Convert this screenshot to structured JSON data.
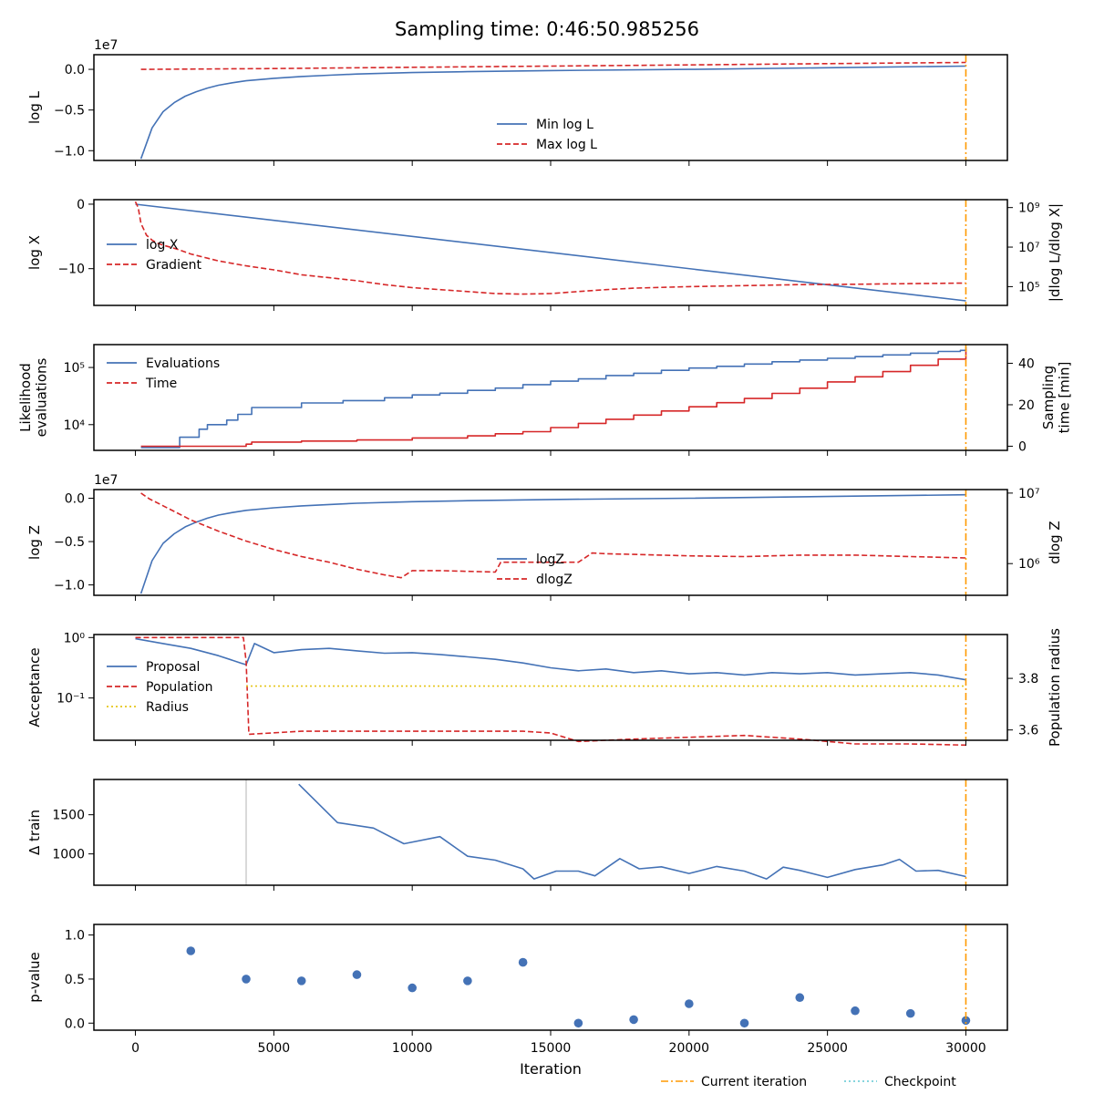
{
  "chart_data": {
    "type": "line",
    "title": "Sampling time: 0:46:50.985256",
    "xlabel": "Iteration",
    "xlim": [
      -1500,
      31500
    ],
    "xticks": [
      0,
      5000,
      10000,
      15000,
      20000,
      25000,
      30000
    ],
    "current_iteration": 30000,
    "legend_bottom": [
      "Current iteration",
      "Checkpoint"
    ],
    "colors": {
      "blue": "#4472b6",
      "red": "#d62728",
      "orange": "#ff9900",
      "yellow": "#e6c619",
      "gray": "#cccccc",
      "checkpoint": "#5fc7d4"
    },
    "panels": [
      {
        "id": "logL",
        "ylabel": "log L",
        "offset_text": "1e7",
        "ylim": [
          -1.12,
          0.18
        ],
        "yticks": [
          0.0,
          -0.5,
          -1.0
        ],
        "ytick_labels": [
          "0.0",
          "−0.5",
          "−1.0"
        ],
        "legend": [
          "Min log L",
          "Max log L"
        ],
        "legend_pos": "lower-center",
        "series": [
          {
            "name": "Min log L",
            "style": "solid",
            "color": "blue",
            "x": [
              200,
              600,
              1000,
              1400,
              1800,
              2200,
              2600,
              3000,
              3500,
              4000,
              5000,
              6000,
              7000,
              8000,
              10000,
              12000,
              15000,
              20000,
              25000,
              30000
            ],
            "y": [
              -1.1,
              -0.72,
              -0.52,
              -0.41,
              -0.33,
              -0.275,
              -0.23,
              -0.195,
              -0.165,
              -0.14,
              -0.11,
              -0.088,
              -0.072,
              -0.058,
              -0.04,
              -0.028,
              -0.015,
              0.0,
              0.02,
              0.04
            ]
          },
          {
            "name": "Max log L",
            "style": "dashed",
            "color": "red",
            "x": [
              200,
              5000,
              10000,
              15000,
              20000,
              25000,
              30000
            ],
            "y": [
              0.0,
              0.01,
              0.025,
              0.04,
              0.055,
              0.07,
              0.085
            ]
          }
        ]
      },
      {
        "id": "logX",
        "ylabel": "log X",
        "ylabel2": "|dlog L/dlog X|",
        "ylim": [
          -15.7,
          0.7
        ],
        "yticks": [
          0,
          -10
        ],
        "ytick_labels": [
          "0",
          "−10"
        ],
        "y2_log_lim": [
          4.05,
          9.4
        ],
        "y2_ticks_log": [
          9,
          7,
          5
        ],
        "y2_tick_labels": [
          "10⁹",
          "10⁷",
          "10⁵"
        ],
        "legend": [
          "log X",
          "Gradient"
        ],
        "legend_pos": "center-left",
        "series": [
          {
            "name": "log X",
            "style": "solid",
            "color": "blue",
            "axis": "left",
            "x": [
              0,
              30000
            ],
            "y": [
              0,
              -15
            ]
          },
          {
            "name": "Gradient",
            "style": "dashed",
            "color": "red",
            "axis": "right_log",
            "x": [
              0,
              100,
              200,
              400,
              600,
              800,
              1000,
              1500,
              2000,
              3000,
              4000,
              5000,
              6000,
              7000,
              8000,
              9000,
              10000,
              11000,
              12000,
              13000,
              14000,
              15000,
              16000,
              17000,
              18000,
              20000,
              22000,
              24000,
              26000,
              28000,
              30000
            ],
            "y": [
              9.3,
              9.0,
              8.2,
              7.6,
              7.35,
              7.2,
              7.1,
              6.9,
              6.65,
              6.3,
              6.05,
              5.85,
              5.6,
              5.45,
              5.3,
              5.1,
              4.95,
              4.85,
              4.75,
              4.65,
              4.62,
              4.65,
              4.75,
              4.85,
              4.92,
              5.0,
              5.05,
              5.1,
              5.12,
              5.15,
              5.18
            ]
          }
        ]
      },
      {
        "id": "evals",
        "ylabel": "Likelihood evaluations",
        "ylabel_lines": [
          "Likelihood",
          "evaluations"
        ],
        "ylabel2_lines": [
          "Sampling",
          "time [min]"
        ],
        "y_log_lim": [
          3.55,
          5.4
        ],
        "yticks_log": [
          5,
          4
        ],
        "ytick_labels": [
          "10⁵",
          "10⁴"
        ],
        "y2lim": [
          -2,
          49
        ],
        "y2ticks": [
          40,
          20,
          0
        ],
        "y2_tick_labels": [
          "40",
          "20",
          "0"
        ],
        "legend": [
          "Evaluations",
          "Time"
        ],
        "legend_pos": "upper-left",
        "series": [
          {
            "name": "Evaluations",
            "style": "steps",
            "color": "blue",
            "axis": "left_log",
            "x": [
              200,
              1500,
              1600,
              2000,
              2300,
              2600,
              2800,
              3300,
              3700,
              4200,
              5000,
              6000,
              7500,
              9000,
              10000,
              11000,
              12000,
              13000,
              14000,
              15000,
              16000,
              17000,
              18000,
              19000,
              20000,
              21000,
              22000,
              23000,
              24000,
              25000,
              26000,
              27000,
              28000,
              29000,
              29800,
              30000
            ],
            "y": [
              3.6,
              3.6,
              3.78,
              3.78,
              3.92,
              4.0,
              4.0,
              4.08,
              4.18,
              4.3,
              4.3,
              4.38,
              4.42,
              4.47,
              4.52,
              4.55,
              4.6,
              4.64,
              4.7,
              4.76,
              4.8,
              4.86,
              4.9,
              4.95,
              4.99,
              5.02,
              5.06,
              5.1,
              5.13,
              5.16,
              5.19,
              5.22,
              5.25,
              5.28,
              5.3,
              5.36
            ]
          },
          {
            "name": "Time",
            "style": "steps",
            "color": "red",
            "axis": "right",
            "x": [
              200,
              2000,
              4000,
              4200,
              6000,
              8000,
              10000,
              12000,
              13000,
              14000,
              15000,
              16000,
              17000,
              18000,
              19000,
              20000,
              21000,
              22000,
              23000,
              24000,
              25000,
              26000,
              27000,
              28000,
              29000,
              30000
            ],
            "y": [
              0,
              0,
              1,
              2,
              2.5,
              3,
              4,
              5,
              6,
              7,
              9,
              11,
              13,
              15,
              17,
              19,
              21,
              23,
              25.5,
              28,
              31,
              33.5,
              36,
              39,
              42,
              46.8
            ]
          }
        ]
      },
      {
        "id": "logZ",
        "ylabel": "log Z",
        "ylabel2": "dlog Z",
        "offset_text": "1e7",
        "ylim": [
          -1.12,
          0.1
        ],
        "yticks": [
          0.0,
          -0.5,
          -1.0
        ],
        "ytick_labels": [
          "0.0",
          "−0.5",
          "−1.0"
        ],
        "y2_log_lim": [
          5.55,
          7.05
        ],
        "y2_ticks_log": [
          7,
          6
        ],
        "y2_tick_labels": [
          "10⁷",
          "10⁶"
        ],
        "legend": [
          "logZ",
          "dlogZ"
        ],
        "legend_pos": "lower-center",
        "series": [
          {
            "name": "logZ",
            "style": "solid",
            "color": "blue",
            "axis": "left",
            "x": [
              200,
              600,
              1000,
              1400,
              1800,
              2200,
              2600,
              3000,
              3500,
              4000,
              5000,
              6000,
              7000,
              8000,
              10000,
              12000,
              15000,
              20000,
              25000,
              30000
            ],
            "y": [
              -1.1,
              -0.72,
              -0.52,
              -0.41,
              -0.33,
              -0.275,
              -0.23,
              -0.195,
              -0.165,
              -0.14,
              -0.11,
              -0.088,
              -0.072,
              -0.058,
              -0.04,
              -0.028,
              -0.015,
              0.0,
              0.02,
              0.04
            ]
          },
          {
            "name": "dlogZ",
            "style": "dashed",
            "color": "red",
            "axis": "right_log",
            "x": [
              200,
              500,
              1000,
              1500,
              2000,
              3000,
              4000,
              5000,
              6000,
              7000,
              8000,
              9000,
              9600,
              10000,
              11000,
              13000,
              13200,
              14000,
              16000,
              16500,
              17000,
              18000,
              20000,
              22000,
              24000,
              26000,
              28000,
              30000
            ],
            "y": [
              7.0,
              6.92,
              6.82,
              6.72,
              6.62,
              6.46,
              6.32,
              6.2,
              6.1,
              6.02,
              5.92,
              5.84,
              5.8,
              5.9,
              5.9,
              5.88,
              6.02,
              6.02,
              6.02,
              6.15,
              6.14,
              6.13,
              6.11,
              6.1,
              6.12,
              6.12,
              6.1,
              6.08
            ]
          }
        ]
      },
      {
        "id": "acceptance",
        "ylabel": "Acceptance",
        "ylabel2": "Population radius",
        "y_log_lim": [
          -1.7,
          0.05
        ],
        "yticks_log": [
          0,
          -1
        ],
        "ytick_labels": [
          "10⁰",
          "10⁻¹"
        ],
        "y2lim": [
          3.56,
          3.97
        ],
        "y2ticks": [
          3.8,
          3.6
        ],
        "y2_tick_labels": [
          "3.8",
          "3.6"
        ],
        "legend": [
          "Proposal",
          "Population",
          "Radius"
        ],
        "legend_pos": "center-left",
        "series": [
          {
            "name": "Proposal",
            "style": "solid",
            "color": "blue",
            "axis": "left_log",
            "x": [
              0,
              1000,
              2000,
              3000,
              3800,
              4000,
              4300,
              5000,
              6000,
              7000,
              8000,
              9000,
              10000,
              11000,
              12000,
              13000,
              14000,
              15000,
              16000,
              17000,
              18000,
              19000,
              20000,
              21000,
              22000,
              23000,
              24000,
              25000,
              26000,
              27000,
              28000,
              29000,
              30000
            ],
            "y": [
              -0.02,
              -0.1,
              -0.18,
              -0.3,
              -0.42,
              -0.45,
              -0.1,
              -0.25,
              -0.2,
              -0.18,
              -0.22,
              -0.26,
              -0.25,
              -0.28,
              -0.32,
              -0.36,
              -0.42,
              -0.5,
              -0.55,
              -0.52,
              -0.58,
              -0.55,
              -0.6,
              -0.58,
              -0.62,
              -0.58,
              -0.6,
              -0.58,
              -0.62,
              -0.6,
              -0.58,
              -0.62,
              -0.7
            ]
          },
          {
            "name": "Population",
            "style": "dashed",
            "color": "red",
            "axis": "left_log",
            "x": [
              0,
              3900,
              4000,
              4100,
              6000,
              8000,
              10000,
              12000,
              14000,
              15000,
              15500,
              16000,
              18000,
              20000,
              22000,
              24000,
              25000,
              26000,
              28000,
              30000
            ],
            "y": [
              0.0,
              0.0,
              -0.4,
              -1.6,
              -1.55,
              -1.55,
              -1.55,
              -1.55,
              -1.55,
              -1.58,
              -1.65,
              -1.72,
              -1.68,
              -1.65,
              -1.62,
              -1.68,
              -1.72,
              -1.76,
              -1.76,
              -1.78
            ]
          },
          {
            "name": "Radius",
            "style": "dotted",
            "color": "yellow",
            "axis": "right",
            "x": [
              4000,
              30000
            ],
            "y": [
              3.77,
              3.77
            ]
          }
        ]
      },
      {
        "id": "dtrain",
        "ylabel": "Δ train",
        "ylim": [
          600,
          1950
        ],
        "yticks": [
          1500,
          1000
        ],
        "ytick_labels": [
          "1500",
          "1000"
        ],
        "training_start": 4000,
        "series": [
          {
            "name": "Δ train",
            "style": "solid",
            "color": "blue",
            "x": [
              5900,
              7300,
              8600,
              9700,
              11000,
              12000,
              13000,
              14000,
              14400,
              15200,
              16000,
              16600,
              17500,
              18200,
              19000,
              20000,
              21000,
              22000,
              22800,
              23400,
              24000,
              25000,
              26000,
              27000,
              27600,
              28200,
              29000,
              30000
            ],
            "y": [
              1890,
              1400,
              1330,
              1130,
              1220,
              970,
              920,
              810,
              680,
              780,
              780,
              720,
              940,
              810,
              835,
              750,
              840,
              780,
              680,
              830,
              790,
              700,
              800,
              860,
              930,
              780,
              790,
              710
            ]
          }
        ]
      },
      {
        "id": "pvalue",
        "ylabel": "p-value",
        "ylim": [
          -0.08,
          1.12
        ],
        "yticks": [
          1.0,
          0.5,
          0.0
        ],
        "ytick_labels": [
          "1.0",
          "0.5",
          "0.0"
        ],
        "series": [
          {
            "name": "p-value",
            "style": "scatter",
            "color": "blue",
            "x": [
              2000,
              4000,
              6000,
              8000,
              10000,
              12000,
              14000,
              16000,
              18000,
              20000,
              22000,
              24000,
              26000,
              28000,
              30000
            ],
            "y": [
              0.82,
              0.5,
              0.48,
              0.55,
              0.4,
              0.48,
              0.69,
              0.0,
              0.04,
              0.22,
              0.0,
              0.29,
              0.14,
              0.11,
              0.03
            ]
          }
        ]
      }
    ]
  }
}
